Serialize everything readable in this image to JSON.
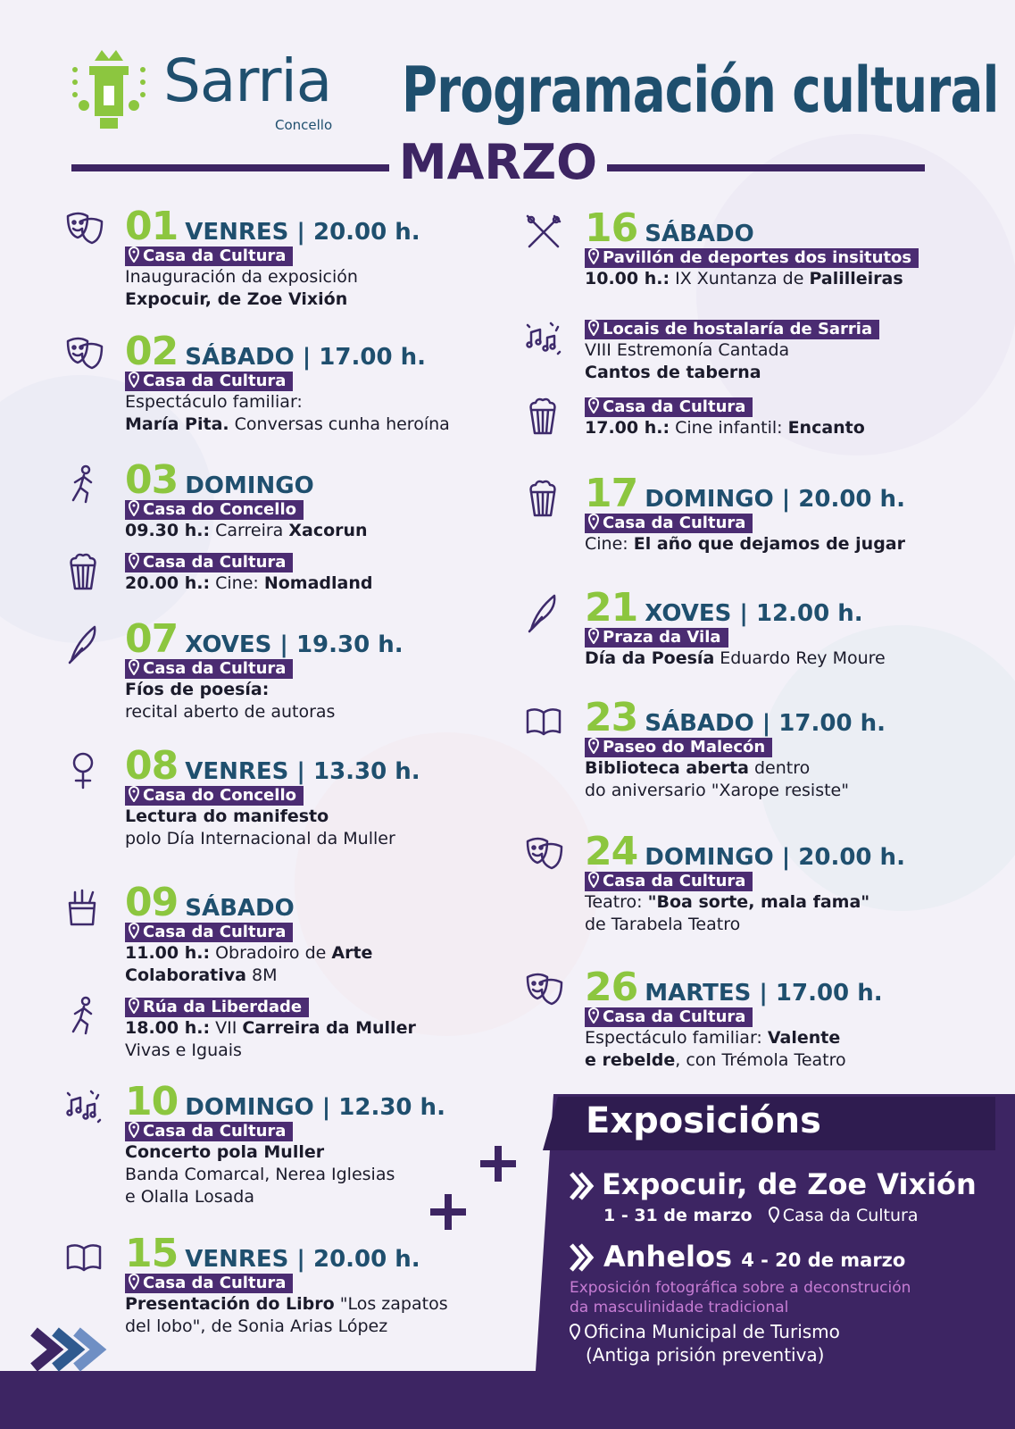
{
  "header": {
    "logo_name": "Sarria",
    "logo_sub": "Concello",
    "title": "Programación cultural",
    "month": "MARZO"
  },
  "events_left": [
    {
      "day": "01",
      "when": "VENRES | 20.00 h.",
      "items": [
        {
          "icon": "theatre",
          "place": "Casa da Cultura",
          "lines": [
            [
              "Inauguración da exposición"
            ],
            [
              {
                "strong": "Expocuir, de Zoe Vixión"
              }
            ]
          ]
        }
      ]
    },
    {
      "day": "02",
      "when": "SÁBADO | 17.00 h.",
      "items": [
        {
          "icon": "theatre",
          "place": "Casa da Cultura",
          "lines": [
            [
              "Espectáculo familiar:"
            ],
            [
              {
                "strong": "María Pita."
              },
              " Conversas cunha heroína"
            ]
          ]
        }
      ]
    },
    {
      "day": "03",
      "when": "DOMINGO",
      "items": [
        {
          "icon": "run",
          "place": "Casa do Concello",
          "lines": [
            [
              {
                "strong": "09.30 h.:"
              },
              " Carreira ",
              {
                "strong": "Xacorun"
              }
            ]
          ]
        },
        {
          "icon": "popcorn",
          "place": "Casa da Cultura",
          "lines": [
            [
              {
                "strong": "20.00 h.:"
              },
              " Cine: ",
              {
                "strong": "Nomadland"
              }
            ]
          ]
        }
      ]
    },
    {
      "day": "07",
      "when": "XOVES | 19.30 h.",
      "items": [
        {
          "icon": "feather",
          "place": "Casa da Cultura",
          "lines": [
            [
              {
                "strong": "Fíos de poesía:"
              }
            ],
            [
              "recital aberto de autoras"
            ]
          ]
        }
      ]
    },
    {
      "day": "08",
      "when": "VENRES | 13.30 h.",
      "items": [
        {
          "icon": "venus",
          "place": "Casa do Concello",
          "lines": [
            [
              {
                "strong": "Lectura do manifesto"
              }
            ],
            [
              "polo Día Internacional da Muller"
            ]
          ]
        }
      ]
    },
    {
      "day": "09",
      "when": "SÁBADO",
      "items": [
        {
          "icon": "art",
          "place": "Casa da Cultura",
          "lines": [
            [
              {
                "strong": "11.00 h.:"
              },
              " Obradoiro de ",
              {
                "strong": "Arte"
              }
            ],
            [
              {
                "strong": "Colaborativa"
              },
              " 8M"
            ]
          ]
        },
        {
          "icon": "run",
          "place": "Rúa da Liberdade",
          "lines": [
            [
              {
                "strong": "18.00 h.:"
              },
              " VII ",
              {
                "strong": "Carreira da Muller"
              }
            ],
            [
              "Vivas e Iguais"
            ]
          ]
        }
      ]
    },
    {
      "day": "10",
      "when": "DOMINGO | 12.30 h.",
      "items": [
        {
          "icon": "music",
          "place": "Casa da Cultura",
          "lines": [
            [
              {
                "strong": "Concerto pola Muller"
              }
            ],
            [
              "Banda Comarcal, Nerea Iglesias"
            ],
            [
              "e Olalla Losada"
            ]
          ]
        }
      ]
    },
    {
      "day": "15",
      "when": "VENRES | 20.00 h.",
      "items": [
        {
          "icon": "book",
          "place": "Casa da Cultura",
          "lines": [
            [
              {
                "strong": "Presentación do Libro"
              },
              " \"Los zapatos"
            ],
            [
              "del lobo\", de Sonia Arias López"
            ]
          ]
        }
      ]
    }
  ],
  "events_right": [
    {
      "day": "16",
      "when": "SÁBADO",
      "items": [
        {
          "icon": "sticks",
          "place": "Pavillón de deportes dos insitutos",
          "lines": [
            [
              {
                "strong": "10.00 h.:"
              },
              " IX Xuntanza de ",
              {
                "strong": "Palilleiras"
              }
            ]
          ]
        }
      ]
    },
    {
      "items": [
        {
          "icon": "music",
          "place": "Locais de hostalaría de Sarria",
          "lines": [
            [
              "VIII Estremonía Cantada"
            ],
            [
              {
                "strong": "Cantos de taberna"
              }
            ]
          ]
        }
      ]
    },
    {
      "items": [
        {
          "icon": "popcorn",
          "place": "Casa da Cultura",
          "lines": [
            [
              {
                "strong": "17.00 h.:"
              },
              " Cine infantil: ",
              {
                "strong": "Encanto"
              }
            ]
          ]
        }
      ]
    },
    {
      "day": "17",
      "when": "DOMINGO | 20.00 h.",
      "items": [
        {
          "icon": "popcorn",
          "place": "Casa da Cultura",
          "lines": [
            [
              "Cine: ",
              {
                "strong": "El año que dejamos de jugar"
              }
            ]
          ]
        }
      ]
    },
    {
      "day": "21",
      "when": "XOVES | 12.00 h.",
      "items": [
        {
          "icon": "feather",
          "place": "Praza da Vila",
          "lines": [
            [
              {
                "strong": "Día da Poesía"
              },
              " Eduardo Rey Moure"
            ]
          ]
        }
      ]
    },
    {
      "day": "23",
      "when": "SÁBADO | 17.00 h.",
      "items": [
        {
          "icon": "book",
          "place": "Paseo do Malecón",
          "lines": [
            [
              {
                "strong": "Biblioteca aberta"
              },
              " dentro"
            ],
            [
              "do aniversario \"Xarope resiste\""
            ]
          ]
        }
      ]
    },
    {
      "day": "24",
      "when": "DOMINGO | 20.00 h.",
      "items": [
        {
          "icon": "theatre",
          "place": "Casa da Cultura",
          "lines": [
            [
              "Teatro: ",
              {
                "strong": "\"Boa sorte, mala fama\""
              }
            ],
            [
              "de Tarabela Teatro"
            ]
          ]
        }
      ]
    },
    {
      "day": "26",
      "when": "MARTES | 17.00 h.",
      "items": [
        {
          "icon": "theatre",
          "place": "Casa da Cultura",
          "lines": [
            [
              "Espectáculo familiar: ",
              {
                "strong": "Valente"
              }
            ],
            [
              {
                "strong": "e rebelde"
              },
              ", con Trémola Teatro"
            ]
          ]
        }
      ]
    }
  ],
  "exhibitions": {
    "title": "Exposicións",
    "items": [
      {
        "name": "Expocuir, de Zoe Vixión",
        "dates": "1 - 31 de marzo",
        "place": "Casa da Cultura"
      },
      {
        "name": "Anhelos",
        "dates": "4 - 20 de marzo",
        "description": [
          "Exposición fotográfica sobre a deconstrución",
          "da masculinidade tradicional"
        ],
        "place": [
          "Oficina Municipal de Turismo",
          "(Antiga prisión preventiva)"
        ]
      }
    ]
  }
}
